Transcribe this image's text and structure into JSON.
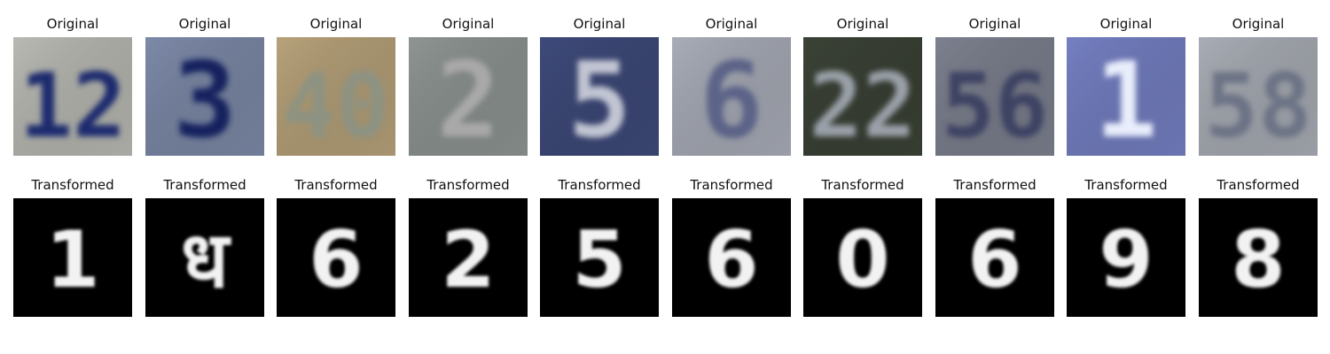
{
  "rows": [
    {
      "name": "original",
      "cells": [
        {
          "title": "Original",
          "digit": "12",
          "bg": "#b9bab3",
          "fg": "#1f2a6e",
          "style": "photo"
        },
        {
          "title": "Original",
          "digit": "3",
          "bg": "#7d8aa8",
          "fg": "#16235e",
          "style": "photo"
        },
        {
          "title": "Original",
          "digit": "40",
          "bg": "#b7a27a",
          "fg": "#8d9382",
          "style": "photo"
        },
        {
          "title": "Original",
          "digit": "2",
          "bg": "#8e9592",
          "fg": "#a9a9a9",
          "style": "photo"
        },
        {
          "title": "Original",
          "digit": "5",
          "bg": "#3e4a7a",
          "fg": "#c2c6d3",
          "style": "photo"
        },
        {
          "title": "Original",
          "digit": "6",
          "bg": "#a9adb8",
          "fg": "#5c6388",
          "style": "photo"
        },
        {
          "title": "Original",
          "digit": "22",
          "bg": "#3b4236",
          "fg": "#9aa0a8",
          "style": "photo"
        },
        {
          "title": "Original",
          "digit": "56",
          "bg": "#7d818f",
          "fg": "#3c4264",
          "style": "photo"
        },
        {
          "title": "Original",
          "digit": "1",
          "bg": "#7580c3",
          "fg": "#e9eefc",
          "style": "photo"
        },
        {
          "title": "Original",
          "digit": "58",
          "bg": "#a9adb5",
          "fg": "#6c7385",
          "style": "photo"
        }
      ]
    },
    {
      "name": "transformed",
      "cells": [
        {
          "title": "Transformed",
          "digit": "1",
          "bg": "#000000",
          "fg": "#f2f2f2",
          "style": "mnist"
        },
        {
          "title": "Transformed",
          "digit": "ध",
          "bg": "#000000",
          "fg": "#f2f2f2",
          "style": "mnist"
        },
        {
          "title": "Transformed",
          "digit": "6",
          "bg": "#000000",
          "fg": "#f2f2f2",
          "style": "mnist"
        },
        {
          "title": "Transformed",
          "digit": "2",
          "bg": "#000000",
          "fg": "#f2f2f2",
          "style": "mnist"
        },
        {
          "title": "Transformed",
          "digit": "5",
          "bg": "#000000",
          "fg": "#f2f2f2",
          "style": "mnist"
        },
        {
          "title": "Transformed",
          "digit": "6",
          "bg": "#000000",
          "fg": "#f2f2f2",
          "style": "mnist"
        },
        {
          "title": "Transformed",
          "digit": "0",
          "bg": "#000000",
          "fg": "#f2f2f2",
          "style": "mnist"
        },
        {
          "title": "Transformed",
          "digit": "6",
          "bg": "#000000",
          "fg": "#f2f2f2",
          "style": "mnist"
        },
        {
          "title": "Transformed",
          "digit": "9",
          "bg": "#000000",
          "fg": "#f2f2f2",
          "style": "mnist"
        },
        {
          "title": "Transformed",
          "digit": "8",
          "bg": "#000000",
          "fg": "#f2f2f2",
          "style": "mnist"
        }
      ]
    }
  ]
}
